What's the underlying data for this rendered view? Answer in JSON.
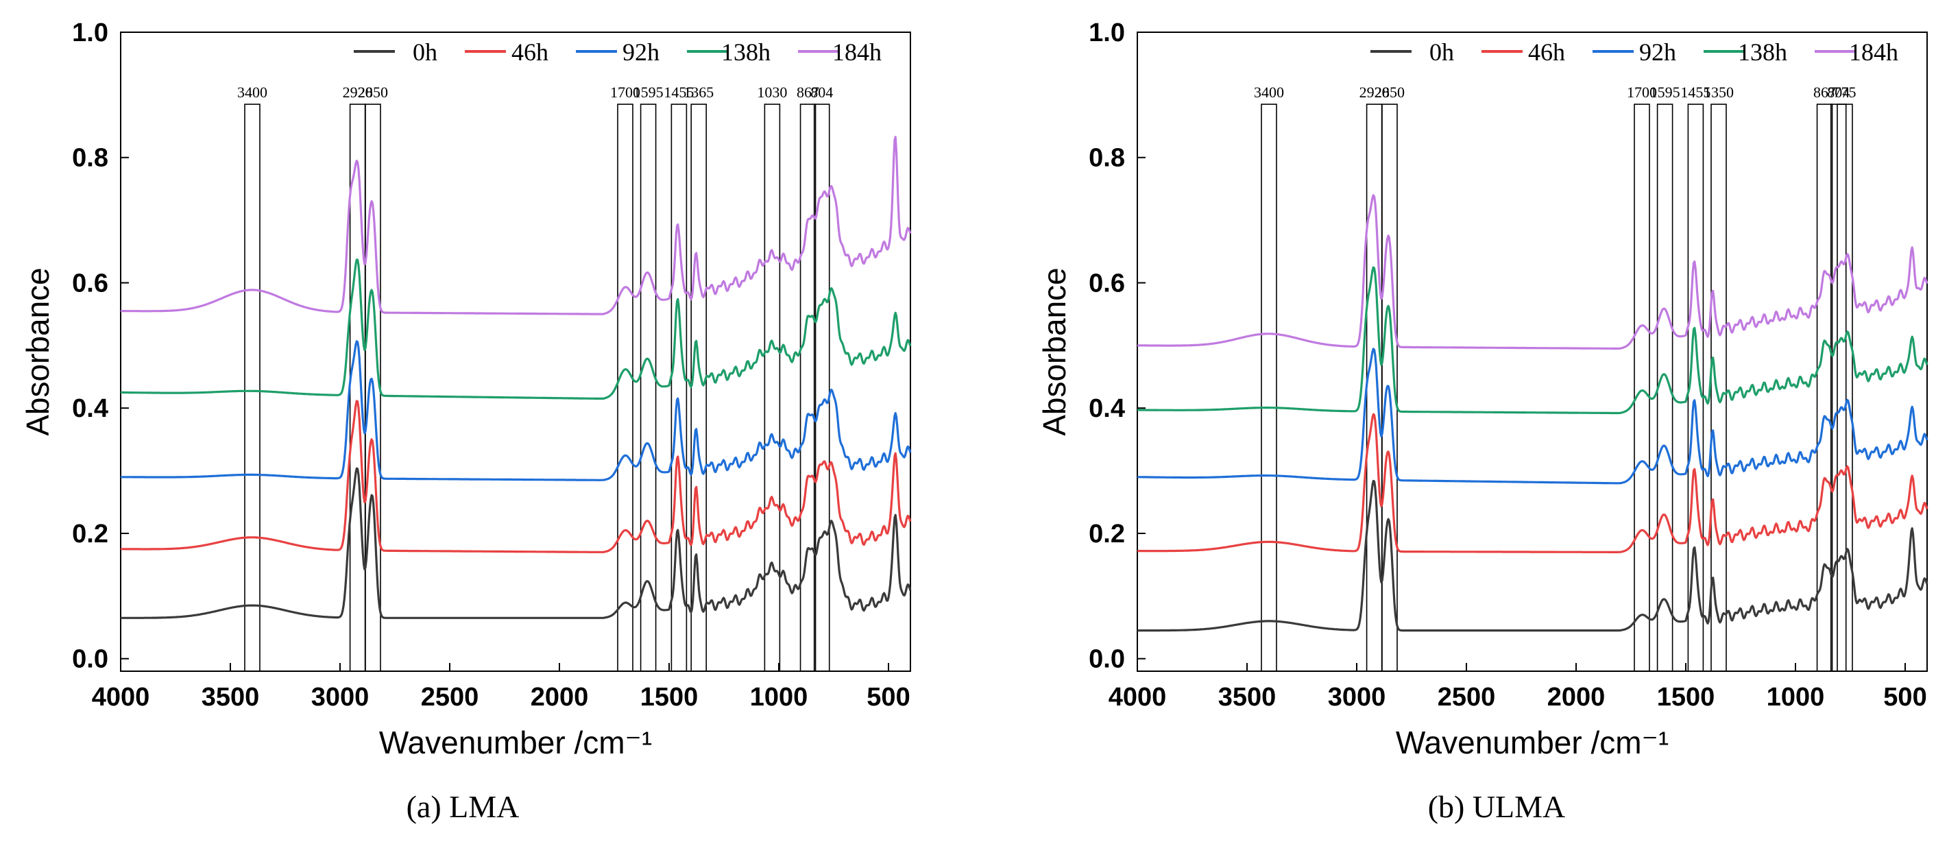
{
  "chart_data": [
    {
      "type": "line",
      "panel": "a",
      "caption": "(a) LMA",
      "xlabel": "Wavenumber /cm⁻¹",
      "ylabel": "Absorbance",
      "xlim": [
        4000,
        400
      ],
      "ylim": [
        -0.02,
        1.0
      ],
      "x_ticks": [
        4000,
        3500,
        3000,
        2500,
        2000,
        1500,
        1000,
        500
      ],
      "y_ticks": [
        0.0,
        0.2,
        0.4,
        0.6,
        0.8,
        1.0
      ],
      "y_tick_labels": [
        "0.0",
        "0.2",
        "0.4",
        "0.6",
        "0.8",
        "1.0"
      ],
      "legend": [
        "0h",
        "46h",
        "92h",
        "138h",
        "184h"
      ],
      "peak_markers": [
        {
          "label": "3400",
          "x": 3400
        },
        {
          "label": "2920",
          "x": 2920
        },
        {
          "label": "2850",
          "x": 2850
        },
        {
          "label": "1700",
          "x": 1700
        },
        {
          "label": "1595",
          "x": 1595
        },
        {
          "label": "1455",
          "x": 1455
        },
        {
          "label": "1365",
          "x": 1365
        },
        {
          "label": "1030",
          "x": 1030
        },
        {
          "label": "867",
          "x": 867
        },
        {
          "label": "804",
          "x": 804
        }
      ],
      "series": [
        {
          "name": "0h",
          "color": "#3a3a3a",
          "baseline": 0.065,
          "peaks": [
            [
              3400,
              0.02,
              150
            ],
            [
              2955,
              0.12,
              15
            ],
            [
              2920,
              0.23,
              18
            ],
            [
              2870,
              0.08,
              12
            ],
            [
              2850,
              0.17,
              14
            ],
            [
              1700,
              0.02,
              30
            ],
            [
              1600,
              0.05,
              25
            ],
            [
              1460,
              0.13,
              12
            ],
            [
              1377,
              0.08,
              8
            ],
            [
              1030,
              0.045,
              60
            ],
            [
              867,
              0.055,
              22
            ],
            [
              804,
              0.09,
              35
            ],
            [
              750,
              0.09,
              25
            ],
            [
              470,
              0.12,
              12
            ]
          ],
          "points": [
            [
              4000,
              0.065
            ],
            [
              1800,
              0.065
            ],
            [
              1000,
              0.1
            ],
            [
              600,
              0.085
            ],
            [
              400,
              0.11
            ]
          ]
        },
        {
          "name": "46h",
          "color": "#e84142",
          "baseline": 0.175,
          "peaks": [
            [
              3400,
              0.02,
              150
            ],
            [
              2955,
              0.12,
              15
            ],
            [
              2920,
              0.23,
              18
            ],
            [
              2870,
              0.08,
              12
            ],
            [
              2850,
              0.15,
              14
            ],
            [
              1700,
              0.03,
              30
            ],
            [
              1600,
              0.04,
              25
            ],
            [
              1460,
              0.14,
              12
            ],
            [
              1377,
              0.08,
              8
            ],
            [
              1030,
              0.04,
              60
            ],
            [
              867,
              0.06,
              22
            ],
            [
              804,
              0.1,
              35
            ],
            [
              750,
              0.07,
              25
            ],
            [
              470,
              0.11,
              12
            ]
          ],
          "points": [
            [
              4000,
              0.175
            ],
            [
              1800,
              0.17
            ],
            [
              1000,
              0.21
            ],
            [
              600,
              0.19
            ],
            [
              400,
              0.22
            ]
          ]
        },
        {
          "name": "92h",
          "color": "#1f6fd8",
          "baseline": 0.29,
          "peaks": [
            [
              3400,
              0.005,
              150
            ],
            [
              2955,
              0.12,
              15
            ],
            [
              2920,
              0.21,
              18
            ],
            [
              2870,
              0.08,
              12
            ],
            [
              2850,
              0.13,
              14
            ],
            [
              1700,
              0.035,
              30
            ],
            [
              1600,
              0.05,
              25
            ],
            [
              1460,
              0.12,
              12
            ],
            [
              1377,
              0.06,
              8
            ],
            [
              1030,
              0.03,
              60
            ],
            [
              867,
              0.05,
              22
            ],
            [
              804,
              0.08,
              35
            ],
            [
              750,
              0.08,
              25
            ],
            [
              470,
              0.06,
              12
            ]
          ],
          "points": [
            [
              4000,
              0.29
            ],
            [
              1800,
              0.285
            ],
            [
              1000,
              0.32
            ],
            [
              600,
              0.31
            ],
            [
              400,
              0.33
            ]
          ]
        },
        {
          "name": "138h",
          "color": "#1e9e6a",
          "baseline": 0.425,
          "peaks": [
            [
              3400,
              0.005,
              150
            ],
            [
              2955,
              0.1,
              15
            ],
            [
              2920,
              0.21,
              18
            ],
            [
              2870,
              0.08,
              12
            ],
            [
              2850,
              0.14,
              14
            ],
            [
              1700,
              0.04,
              30
            ],
            [
              1600,
              0.05,
              25
            ],
            [
              1460,
              0.14,
              12
            ],
            [
              1377,
              0.06,
              8
            ],
            [
              1030,
              0.03,
              60
            ],
            [
              867,
              0.05,
              22
            ],
            [
              804,
              0.08,
              35
            ],
            [
              750,
              0.08,
              25
            ],
            [
              470,
              0.05,
              12
            ]
          ],
          "points": [
            [
              4000,
              0.425
            ],
            [
              1800,
              0.415
            ],
            [
              1000,
              0.47
            ],
            [
              600,
              0.48
            ],
            [
              400,
              0.5
            ]
          ]
        },
        {
          "name": "184h",
          "color": "#c07ae0",
          "baseline": 0.555,
          "peaks": [
            [
              3400,
              0.035,
              140
            ],
            [
              2955,
              0.15,
              15
            ],
            [
              2920,
              0.23,
              18
            ],
            [
              2870,
              0.08,
              12
            ],
            [
              2850,
              0.15,
              14
            ],
            [
              1700,
              0.035,
              30
            ],
            [
              1600,
              0.05,
              25
            ],
            [
              1460,
              0.12,
              12
            ],
            [
              1377,
              0.06,
              8
            ],
            [
              1030,
              0.03,
              60
            ],
            [
              867,
              0.05,
              22
            ],
            [
              804,
              0.1,
              35
            ],
            [
              750,
              0.08,
              25
            ],
            [
              470,
              0.16,
              10
            ]
          ],
          "points": [
            [
              4000,
              0.555
            ],
            [
              1800,
              0.55
            ],
            [
              1000,
              0.615
            ],
            [
              600,
              0.64
            ],
            [
              400,
              0.68
            ]
          ]
        }
      ]
    },
    {
      "type": "line",
      "panel": "b",
      "caption": "(b) ULMA",
      "xlabel": "Wavenumber /cm⁻¹",
      "ylabel": "Absorbance",
      "xlim": [
        4000,
        400
      ],
      "ylim": [
        -0.02,
        1.0
      ],
      "x_ticks": [
        4000,
        3500,
        3000,
        2500,
        2000,
        1500,
        1000,
        500
      ],
      "y_ticks": [
        0.0,
        0.2,
        0.4,
        0.6,
        0.8,
        1.0
      ],
      "y_tick_labels": [
        "0.0",
        "0.2",
        "0.4",
        "0.6",
        "0.8",
        "1.0"
      ],
      "legend": [
        "0h",
        "46h",
        "92h",
        "138h",
        "184h"
      ],
      "peak_markers": [
        {
          "label": "3400",
          "x": 3400
        },
        {
          "label": "2920",
          "x": 2920
        },
        {
          "label": "2850",
          "x": 2850
        },
        {
          "label": "1700",
          "x": 1700
        },
        {
          "label": "1595",
          "x": 1595
        },
        {
          "label": "1455",
          "x": 1455
        },
        {
          "label": "1350",
          "x": 1350
        },
        {
          "label": "867",
          "x": 867
        },
        {
          "label": "804",
          "x": 804
        },
        {
          "label": "775",
          "x": 775
        }
      ],
      "series": [
        {
          "name": "0h",
          "color": "#3a3a3a",
          "baseline": 0.045,
          "peaks": [
            [
              3400,
              0.015,
              150
            ],
            [
              2955,
              0.12,
              15
            ],
            [
              2920,
              0.23,
              18
            ],
            [
              2870,
              0.08,
              12
            ],
            [
              2850,
              0.15,
              14
            ],
            [
              1700,
              0.02,
              30
            ],
            [
              1600,
              0.04,
              25
            ],
            [
              1460,
              0.12,
              12
            ],
            [
              1377,
              0.06,
              8
            ],
            [
              867,
              0.05,
              22
            ],
            [
              804,
              0.06,
              30
            ],
            [
              760,
              0.06,
              20
            ],
            [
              470,
              0.09,
              12
            ]
          ],
          "points": [
            [
              4000,
              0.045
            ],
            [
              1800,
              0.045
            ],
            [
              1000,
              0.085
            ],
            [
              600,
              0.09
            ],
            [
              400,
              0.12
            ]
          ]
        },
        {
          "name": "46h",
          "color": "#e84142",
          "baseline": 0.172,
          "peaks": [
            [
              3400,
              0.015,
              150
            ],
            [
              2955,
              0.12,
              15
            ],
            [
              2920,
              0.21,
              18
            ],
            [
              2870,
              0.08,
              12
            ],
            [
              2850,
              0.13,
              14
            ],
            [
              1700,
              0.03,
              30
            ],
            [
              1600,
              0.05,
              25
            ],
            [
              1460,
              0.12,
              12
            ],
            [
              1377,
              0.06,
              8
            ],
            [
              867,
              0.06,
              22
            ],
            [
              804,
              0.07,
              30
            ],
            [
              760,
              0.06,
              20
            ],
            [
              470,
              0.05,
              12
            ]
          ],
          "points": [
            [
              4000,
              0.172
            ],
            [
              1800,
              0.17
            ],
            [
              1000,
              0.21
            ],
            [
              600,
              0.22
            ],
            [
              400,
              0.24
            ]
          ]
        },
        {
          "name": "92h",
          "color": "#1f6fd8",
          "baseline": 0.29,
          "peaks": [
            [
              3400,
              0.005,
              150
            ],
            [
              2955,
              0.12,
              15
            ],
            [
              2920,
              0.2,
              18
            ],
            [
              2870,
              0.08,
              12
            ],
            [
              2850,
              0.12,
              14
            ],
            [
              1700,
              0.03,
              30
            ],
            [
              1600,
              0.05,
              25
            ],
            [
              1460,
              0.12,
              12
            ],
            [
              1377,
              0.06,
              8
            ],
            [
              867,
              0.05,
              22
            ],
            [
              804,
              0.06,
              30
            ],
            [
              760,
              0.06,
              20
            ],
            [
              470,
              0.05,
              12
            ]
          ],
          "points": [
            [
              4000,
              0.29
            ],
            [
              1800,
              0.28
            ],
            [
              1000,
              0.32
            ],
            [
              600,
              0.33
            ],
            [
              400,
              0.35
            ]
          ]
        },
        {
          "name": "138h",
          "color": "#1e9e6a",
          "baseline": 0.397,
          "peaks": [
            [
              3400,
              0.005,
              150
            ],
            [
              2955,
              0.13,
              15
            ],
            [
              2920,
              0.22,
              18
            ],
            [
              2870,
              0.08,
              12
            ],
            [
              2850,
              0.14,
              14
            ],
            [
              1700,
              0.03,
              30
            ],
            [
              1600,
              0.05,
              25
            ],
            [
              1460,
              0.12,
              12
            ],
            [
              1377,
              0.06,
              8
            ],
            [
              867,
              0.05,
              22
            ],
            [
              804,
              0.05,
              30
            ],
            [
              760,
              0.05,
              20
            ],
            [
              470,
              0.04,
              12
            ]
          ],
          "points": [
            [
              4000,
              0.397
            ],
            [
              1800,
              0.392
            ],
            [
              1000,
              0.44
            ],
            [
              600,
              0.455
            ],
            [
              400,
              0.47
            ]
          ]
        },
        {
          "name": "184h",
          "color": "#c07ae0",
          "baseline": 0.5,
          "peaks": [
            [
              3400,
              0.02,
              140
            ],
            [
              2955,
              0.15,
              15
            ],
            [
              2920,
              0.23,
              18
            ],
            [
              2870,
              0.08,
              12
            ],
            [
              2850,
              0.15,
              14
            ],
            [
              1700,
              0.03,
              30
            ],
            [
              1600,
              0.05,
              25
            ],
            [
              1460,
              0.12,
              12
            ],
            [
              1377,
              0.06,
              8
            ],
            [
              867,
              0.05,
              22
            ],
            [
              804,
              0.06,
              30
            ],
            [
              760,
              0.06,
              20
            ],
            [
              470,
              0.06,
              10
            ]
          ],
          "points": [
            [
              4000,
              0.5
            ],
            [
              1800,
              0.495
            ],
            [
              1000,
              0.55
            ],
            [
              600,
              0.565
            ],
            [
              400,
              0.6
            ]
          ]
        }
      ]
    }
  ]
}
